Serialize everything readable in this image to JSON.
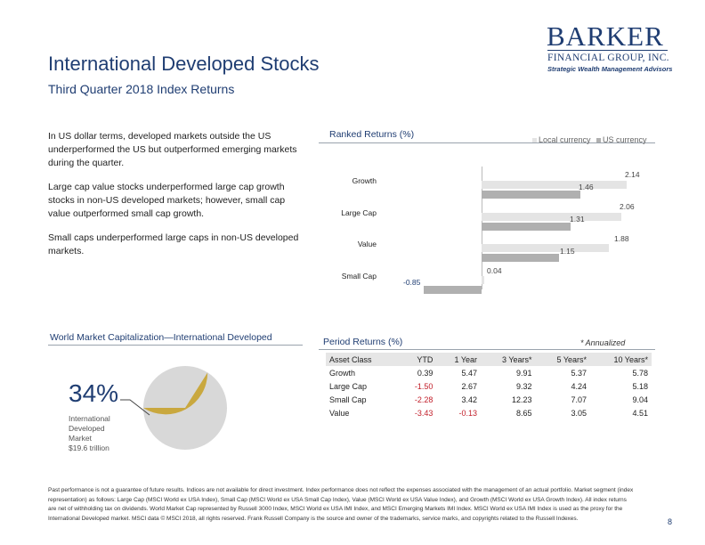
{
  "header": {
    "title": "International Developed Stocks",
    "subtitle": "Third Quarter 2018 Index Returns"
  },
  "logo": {
    "name": "BARKER",
    "company": "FINANCIAL GROUP, INC.",
    "tagline": "Strategic Wealth Management Advisors"
  },
  "commentary": [
    "In US dollar terms, developed markets outside the US underperformed the US but outperformed emerging markets during the quarter.",
    "Large cap value stocks underperformed large cap growth stocks in non-US developed markets; however, small cap value outperformed small cap growth.",
    "Small caps underperformed large caps in non-US developed markets."
  ],
  "ranked": {
    "label": "Ranked Returns (%)",
    "legend": {
      "local": "Local currency",
      "us": "US currency"
    },
    "colors": {
      "local": "#e4e4e4",
      "us": "#b0b0b0"
    }
  },
  "chart_data": {
    "type": "bar",
    "orientation": "horizontal",
    "title": "Ranked Returns (%)",
    "categories": [
      "Growth",
      "Large Cap",
      "Value",
      "Small Cap"
    ],
    "series": [
      {
        "name": "Local currency",
        "values": [
          2.14,
          2.06,
          1.88,
          0.04
        ],
        "labels": [
          "2.14",
          "2.06",
          "1.88",
          "0.04"
        ]
      },
      {
        "name": "US currency",
        "values": [
          1.46,
          1.31,
          1.15,
          -0.85
        ],
        "labels": [
          "1.46",
          "1.31",
          "1.15",
          "-0.85"
        ]
      }
    ],
    "xlim": [
      -1.5,
      2.5
    ]
  },
  "market_cap": {
    "label": "World Market Capitalization—International Developed",
    "percent": "34%",
    "share": 0.34,
    "description_lines": [
      "International",
      "Developed",
      "Market",
      "$19.6 trillion"
    ],
    "colors": {
      "slice": "#c9a83f",
      "rest": "#d8d8d8"
    }
  },
  "period_returns": {
    "label": "Period Returns (%)",
    "note": "* Annualized",
    "columns": [
      "Asset Class",
      "YTD",
      "1 Year",
      "3 Years*",
      "5 Years*",
      "10 Years*"
    ],
    "rows": [
      [
        "Growth",
        "0.39",
        "5.47",
        "9.91",
        "5.37",
        "5.78"
      ],
      [
        "Large Cap",
        "-1.50",
        "2.67",
        "9.32",
        "4.24",
        "5.18"
      ],
      [
        "Small Cap",
        "-2.28",
        "3.42",
        "12.23",
        "7.07",
        "9.04"
      ],
      [
        "Value",
        "-3.43",
        "-0.13",
        "8.65",
        "3.05",
        "4.51"
      ]
    ]
  },
  "footnote": "Past performance is not a guarantee of future results. Indices are not available for direct investment. Index performance does not reflect the expenses associated with the management of an actual portfolio. Market segment (index representation) as follows: Large Cap (MSCI World ex USA Index), Small Cap (MSCI World ex USA Small Cap Index), Value (MSCI World ex USA Value Index), and Growth (MSCI World ex USA Growth Index). All index returns are net of withholding tax on dividends. World Market Cap represented by Russell 3000 Index, MSCI World ex USA IMI Index, and MSCI Emerging Markets IMI Index. MSCI World ex USA IMI Index is used as the proxy for the International Developed market. MSCI data © MSCI 2018, all rights reserved. Frank Russell Company is the source and owner of the trademarks, service marks, and copyrights related to the Russell Indexes.",
  "page_number": "8"
}
